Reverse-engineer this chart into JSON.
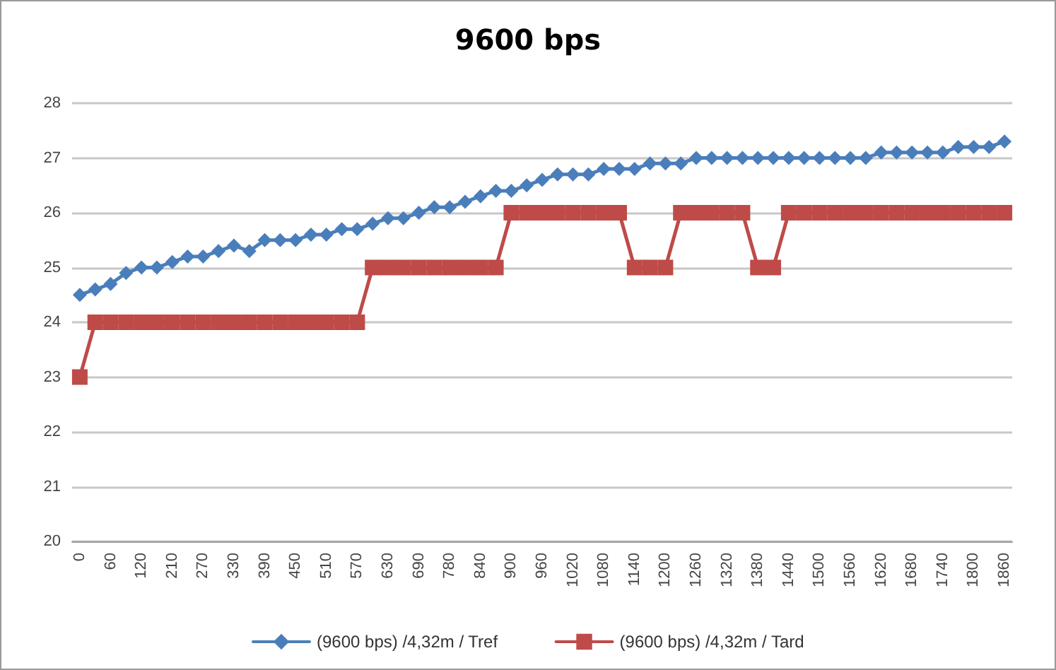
{
  "chart_data": {
    "type": "line",
    "title": "9600 bps",
    "categories": [
      "0",
      null,
      "60",
      null,
      "120",
      null,
      "210",
      null,
      "270",
      null,
      "330",
      null,
      "390",
      null,
      "450",
      null,
      "510",
      null,
      "570",
      null,
      "630",
      null,
      "690",
      null,
      "780",
      null,
      "840",
      null,
      "900",
      null,
      "960",
      null,
      "1020",
      null,
      "1080",
      null,
      "1140",
      null,
      "1200",
      null,
      "1260",
      null,
      "1320",
      null,
      "1380",
      null,
      "1440",
      null,
      "1500",
      null,
      "1560",
      null,
      "1620",
      null,
      "1680",
      null,
      "1740",
      null,
      "1800",
      null,
      "1860"
    ],
    "series": [
      {
        "name": "(9600 bps) /4,32m / Tref",
        "color": "#4a7ebb",
        "marker": "diamond",
        "values": [
          24.5,
          24.6,
          24.7,
          24.9,
          25.0,
          25.0,
          25.1,
          25.2,
          25.2,
          25.3,
          25.4,
          25.3,
          25.5,
          25.5,
          25.5,
          25.6,
          25.6,
          25.7,
          25.7,
          25.8,
          25.9,
          25.9,
          26.0,
          26.1,
          26.1,
          26.2,
          26.3,
          26.4,
          26.4,
          26.5,
          26.6,
          26.7,
          26.7,
          26.7,
          26.8,
          26.8,
          26.8,
          26.9,
          26.9,
          26.9,
          27.0,
          27.0,
          27.0,
          27.0,
          27.0,
          27.0,
          27.0,
          27.0,
          27.0,
          27.0,
          27.0,
          27.0,
          27.1,
          27.1,
          27.1,
          27.1,
          27.1,
          27.2,
          27.2,
          27.2,
          27.3
        ]
      },
      {
        "name": "(9600 bps) /4,32m / Tard",
        "color": "#be4b48",
        "marker": "square",
        "values": [
          23,
          24,
          24,
          24,
          24,
          24,
          24,
          24,
          24,
          24,
          24,
          24,
          24,
          24,
          24,
          24,
          24,
          24,
          24,
          25,
          25,
          25,
          25,
          25,
          25,
          25,
          25,
          25,
          26,
          26,
          26,
          26,
          26,
          26,
          26,
          26,
          25,
          25,
          25,
          26,
          26,
          26,
          26,
          26,
          25,
          25,
          26,
          26,
          26,
          26,
          26,
          26,
          26,
          26,
          26,
          26,
          26,
          26,
          26,
          26,
          26
        ]
      }
    ],
    "ylim": [
      20,
      28
    ],
    "yticks": [
      20,
      21,
      22,
      23,
      24,
      25,
      26,
      27,
      28
    ],
    "grid": "y",
    "legend": "bottom"
  }
}
